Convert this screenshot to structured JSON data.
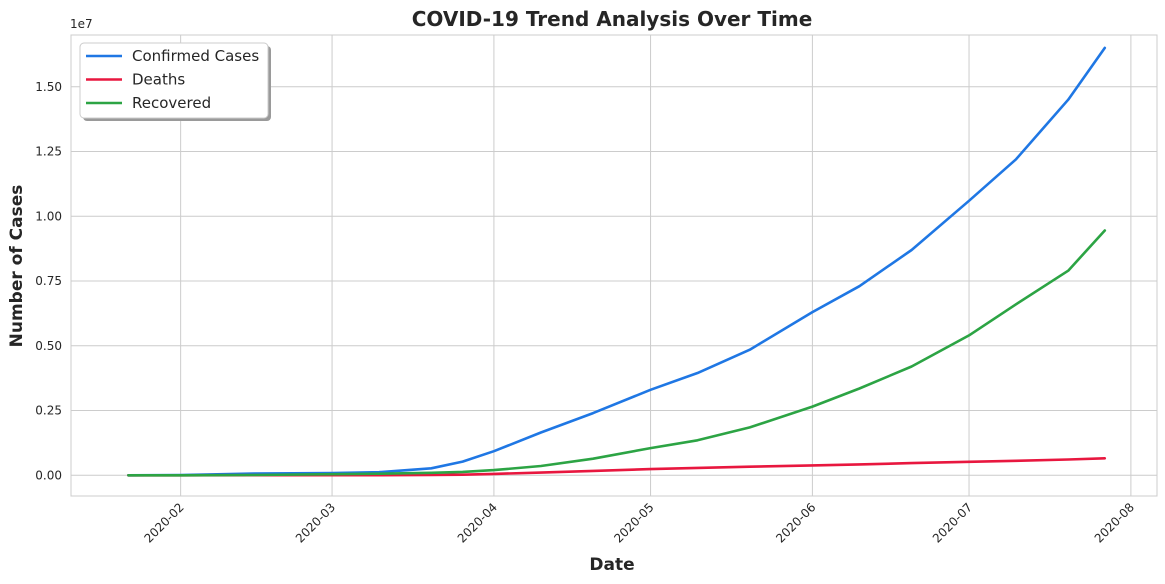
{
  "chart_data": {
    "type": "line",
    "title": "COVID-19 Trend Analysis Over Time",
    "xlabel": "Date",
    "ylabel": "Number of Cases",
    "y_offset_label": "1e7",
    "ylim": [
      -800000,
      17000000
    ],
    "xlim": [
      "2020-01-11",
      "2020-08-06"
    ],
    "grid": true,
    "legend_position": "upper-left",
    "x_ticks": [
      "2020-02",
      "2020-03",
      "2020-04",
      "2020-05",
      "2020-06",
      "2020-07",
      "2020-08"
    ],
    "y_ticks": [
      0,
      2500000,
      5000000,
      7500000,
      10000000,
      12500000,
      15000000
    ],
    "y_tick_labels": [
      "0.00",
      "0.25",
      "0.50",
      "0.75",
      "1.00",
      "1.25",
      "1.50"
    ],
    "x": [
      "2020-01-22",
      "2020-02-01",
      "2020-02-15",
      "2020-03-01",
      "2020-03-10",
      "2020-03-20",
      "2020-03-26",
      "2020-04-01",
      "2020-04-10",
      "2020-04-20",
      "2020-05-01",
      "2020-05-10",
      "2020-05-20",
      "2020-06-01",
      "2020-06-10",
      "2020-06-20",
      "2020-07-01",
      "2020-07-10",
      "2020-07-20",
      "2020-07-27"
    ],
    "series": [
      {
        "name": "Confirmed Cases",
        "color": "#1f77e4",
        "values": [
          550,
          12000,
          69000,
          88000,
          120000,
          270000,
          530000,
          930000,
          1650000,
          2400000,
          3300000,
          3950000,
          4850000,
          6300000,
          7300000,
          8700000,
          10600000,
          12200000,
          14500000,
          16500000
        ]
      },
      {
        "name": "Deaths",
        "color": "#e8173f",
        "values": [
          17,
          260,
          1700,
          3000,
          4300,
          11000,
          24000,
          52000,
          105000,
          170000,
          240000,
          285000,
          330000,
          380000,
          420000,
          470000,
          520000,
          560000,
          610000,
          655000
        ]
      },
      {
        "name": "Recovered",
        "color": "#2ca444",
        "values": [
          28,
          600,
          10000,
          43000,
          60000,
          95000,
          130000,
          200000,
          360000,
          640000,
          1050000,
          1350000,
          1850000,
          2650000,
          3350000,
          4200000,
          5400000,
          6600000,
          7900000,
          9450000
        ]
      }
    ]
  }
}
